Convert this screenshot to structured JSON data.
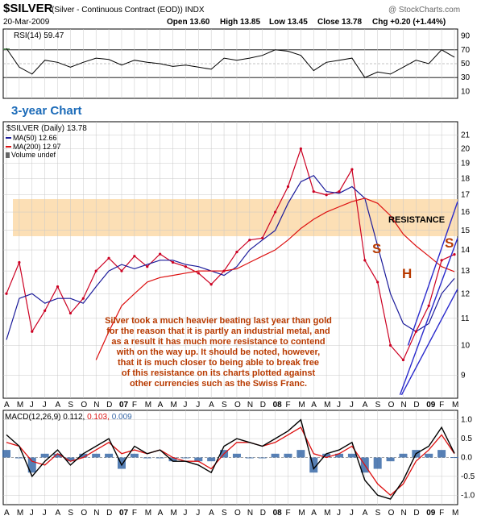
{
  "header": {
    "symbol": "$SILVER",
    "name": "(Silver - Continuous Contract (EOD)) INDX",
    "watermark": "@ StockCharts.com",
    "date": "20-Mar-2009",
    "open_label": "Open",
    "open": "13.60",
    "high_label": "High",
    "high": "13.85",
    "low_label": "Low",
    "low": "13.45",
    "close_label": "Close",
    "close": "13.78",
    "chg_label": "Chg",
    "chg": "+0.20 (+1.44%)"
  },
  "colors": {
    "price": "#cc0022",
    "ma50": "#1a1a9a",
    "ma200": "#dd1111",
    "resistance_band": "#fbd9a8",
    "annotation": "#b83a00",
    "trendline": "#2a2acc",
    "rsi_fill": "#5a8a5a",
    "macd_line": "#000000",
    "macd_signal": "#dd1111",
    "macd_hist": "#3a6aa8",
    "axis": "#000000",
    "grid": "#c8c8c8"
  },
  "rsi_panel": {
    "label": "RSI(14) 59.47",
    "ticks": [
      "90",
      "70",
      "50",
      "30",
      "10"
    ]
  },
  "price_panel": {
    "subtitle": "3-year Chart",
    "legend": {
      "price": "$SILVER (Daily) 13.78",
      "ma50": "MA(50) 12.66",
      "ma200": "MA(200) 12.97",
      "volume": "Volume undef"
    },
    "resistance_label": "RESISTANCE",
    "pattern_labels": [
      "S",
      "H",
      "S"
    ],
    "commentary": [
      "Silver took a much heavier beating last year than gold",
      "for the reason that it is partly an industrial metal, and",
      "as a result it has much more resistance to contend",
      "with on the way up. It should be noted, however,",
      "that it is much closer to being able to break free",
      "of this resistance on its charts plotted against",
      "other currencies such as the Swiss Franc."
    ],
    "yticks": [
      "21",
      "20",
      "19",
      "18",
      "17",
      "16",
      "15",
      "14",
      "13",
      "12",
      "11",
      "10",
      "9"
    ]
  },
  "macd_panel": {
    "label": "MACD(12,26,9)",
    "macd_value": "0.112,",
    "signal_value": "0.103,",
    "hist_value": "0.009",
    "ticks": [
      "1.0",
      "0.5",
      "0.0",
      "-0.5",
      "-1.0"
    ]
  },
  "x_axis_labels": [
    "A",
    "M",
    "J",
    "J",
    "A",
    "S",
    "O",
    "N",
    "D",
    "07",
    "F",
    "M",
    "A",
    "M",
    "J",
    "J",
    "A",
    "S",
    "O",
    "N",
    "D",
    "08",
    "F",
    "M",
    "A",
    "M",
    "J",
    "J",
    "A",
    "S",
    "O",
    "N",
    "D",
    "09",
    "F",
    "M"
  ],
  "chart_data": {
    "type": "line",
    "title": "$SILVER (Silver - Continuous Contract (EOD)) INDX",
    "subtitle": "3-year Chart",
    "x": [
      "2006-04",
      "2006-05",
      "2006-06",
      "2006-07",
      "2006-08",
      "2006-09",
      "2006-10",
      "2006-11",
      "2006-12",
      "2007-01",
      "2007-02",
      "2007-03",
      "2007-04",
      "2007-05",
      "2007-06",
      "2007-07",
      "2007-08",
      "2007-09",
      "2007-10",
      "2007-11",
      "2007-12",
      "2008-01",
      "2008-02",
      "2008-03",
      "2008-04",
      "2008-05",
      "2008-06",
      "2008-07",
      "2008-08",
      "2008-09",
      "2008-10",
      "2008-11",
      "2008-12",
      "2009-01",
      "2009-02",
      "2009-03"
    ],
    "series": [
      {
        "name": "$SILVER (Daily) 13.78",
        "values": [
          12.0,
          13.4,
          10.5,
          11.3,
          12.3,
          11.2,
          11.8,
          13.0,
          13.6,
          13.0,
          13.7,
          13.2,
          13.8,
          13.4,
          13.2,
          12.9,
          12.4,
          13.0,
          13.9,
          14.5,
          14.6,
          16.0,
          17.5,
          20.0,
          17.2,
          17.0,
          17.2,
          18.6,
          13.5,
          12.5,
          10.0,
          9.5,
          10.5,
          11.5,
          13.5,
          13.78
        ]
      },
      {
        "name": "MA(50) 12.66",
        "values": [
          10.2,
          11.8,
          12.0,
          11.6,
          11.8,
          11.8,
          11.6,
          12.3,
          13.0,
          13.3,
          13.1,
          13.3,
          13.5,
          13.5,
          13.3,
          13.2,
          13.0,
          12.8,
          13.2,
          14.0,
          14.5,
          15.0,
          16.5,
          17.8,
          18.2,
          17.2,
          17.1,
          17.5,
          16.8,
          14.2,
          12.0,
          10.8,
          10.5,
          10.8,
          12.0,
          12.66
        ]
      },
      {
        "name": "MA(200) 12.97",
        "values": [
          null,
          null,
          null,
          null,
          null,
          null,
          null,
          9.5,
          10.5,
          11.5,
          12.0,
          12.5,
          12.7,
          12.8,
          12.9,
          13.0,
          13.0,
          13.0,
          13.1,
          13.4,
          13.7,
          14.0,
          14.5,
          15.1,
          15.6,
          16.0,
          16.3,
          16.6,
          16.8,
          16.5,
          15.8,
          14.8,
          14.2,
          13.7,
          13.2,
          12.97
        ]
      }
    ],
    "ylabel": "",
    "ylim": [
      8.3,
      22.0
    ],
    "y_scale": "log",
    "annotations": [
      "RESISTANCE",
      "S",
      "H",
      "S"
    ],
    "resistance_zone": [
      14.5,
      16.8
    ],
    "rsi_series": {
      "name": "RSI(14) 59.47",
      "values": [
        72,
        45,
        35,
        55,
        52,
        45,
        52,
        58,
        56,
        48,
        55,
        52,
        50,
        46,
        48,
        45,
        42,
        58,
        55,
        58,
        62,
        70,
        68,
        62,
        40,
        52,
        55,
        58,
        30,
        38,
        35,
        45,
        55,
        50,
        70,
        59.47
      ],
      "ylim": [
        10,
        90
      ]
    },
    "macd_series": {
      "name": "MACD(12,26,9)",
      "macd": [
        0.6,
        0.3,
        -0.5,
        -0.1,
        0.2,
        -0.2,
        0.1,
        0.3,
        0.5,
        -0.2,
        0.3,
        0.1,
        0.2,
        -0.1,
        -0.1,
        -0.2,
        -0.4,
        0.3,
        0.5,
        0.4,
        0.3,
        0.5,
        0.7,
        1.0,
        -0.3,
        0.1,
        0.2,
        0.4,
        -0.6,
        -1.0,
        -1.1,
        -0.6,
        0.1,
        0.3,
        0.8,
        0.112
      ],
      "signal": [
        0.4,
        0.3,
        -0.1,
        -0.2,
        0.1,
        -0.1,
        0.0,
        0.2,
        0.4,
        0.1,
        0.2,
        0.1,
        0.2,
        0.0,
        -0.1,
        -0.1,
        -0.3,
        0.1,
        0.4,
        0.4,
        0.3,
        0.4,
        0.6,
        0.8,
        0.1,
        0.0,
        0.1,
        0.3,
        -0.2,
        -0.7,
        -1.0,
        -0.7,
        -0.1,
        0.2,
        0.6,
        0.103
      ],
      "ylim": [
        -1.25,
        1.25
      ]
    }
  }
}
